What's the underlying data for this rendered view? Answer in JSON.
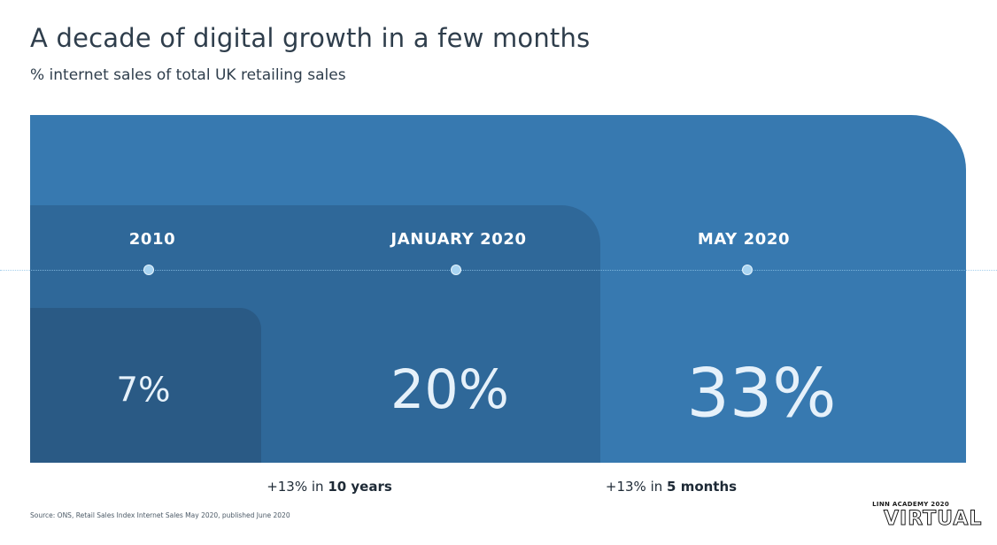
{
  "chart_data": {
    "type": "bar",
    "title": "A decade of digital growth in a few months",
    "subtitle": "% internet sales of total UK retailing sales",
    "categories": [
      "2010",
      "JANUARY 2020",
      "MAY 2020"
    ],
    "values": [
      7,
      20,
      33
    ],
    "value_labels": [
      "7%",
      "20%",
      "33%"
    ],
    "unit": "%",
    "annotations": [
      {
        "prefix": "+13% in ",
        "emphasis": "10 years"
      },
      {
        "prefix": "+13% in ",
        "emphasis": "5 months"
      }
    ],
    "source": "Source: ONS, Retail Sales Index Internet Sales May 2020, published June 2020",
    "colors": {
      "small": "#2a5a85",
      "mid": "#2f6899",
      "large": "#3779b0",
      "marker": "#a8d4f2"
    }
  },
  "logo": {
    "top_text": "LINN ACADEMY 2020",
    "main_text": "VIRTUAL"
  }
}
